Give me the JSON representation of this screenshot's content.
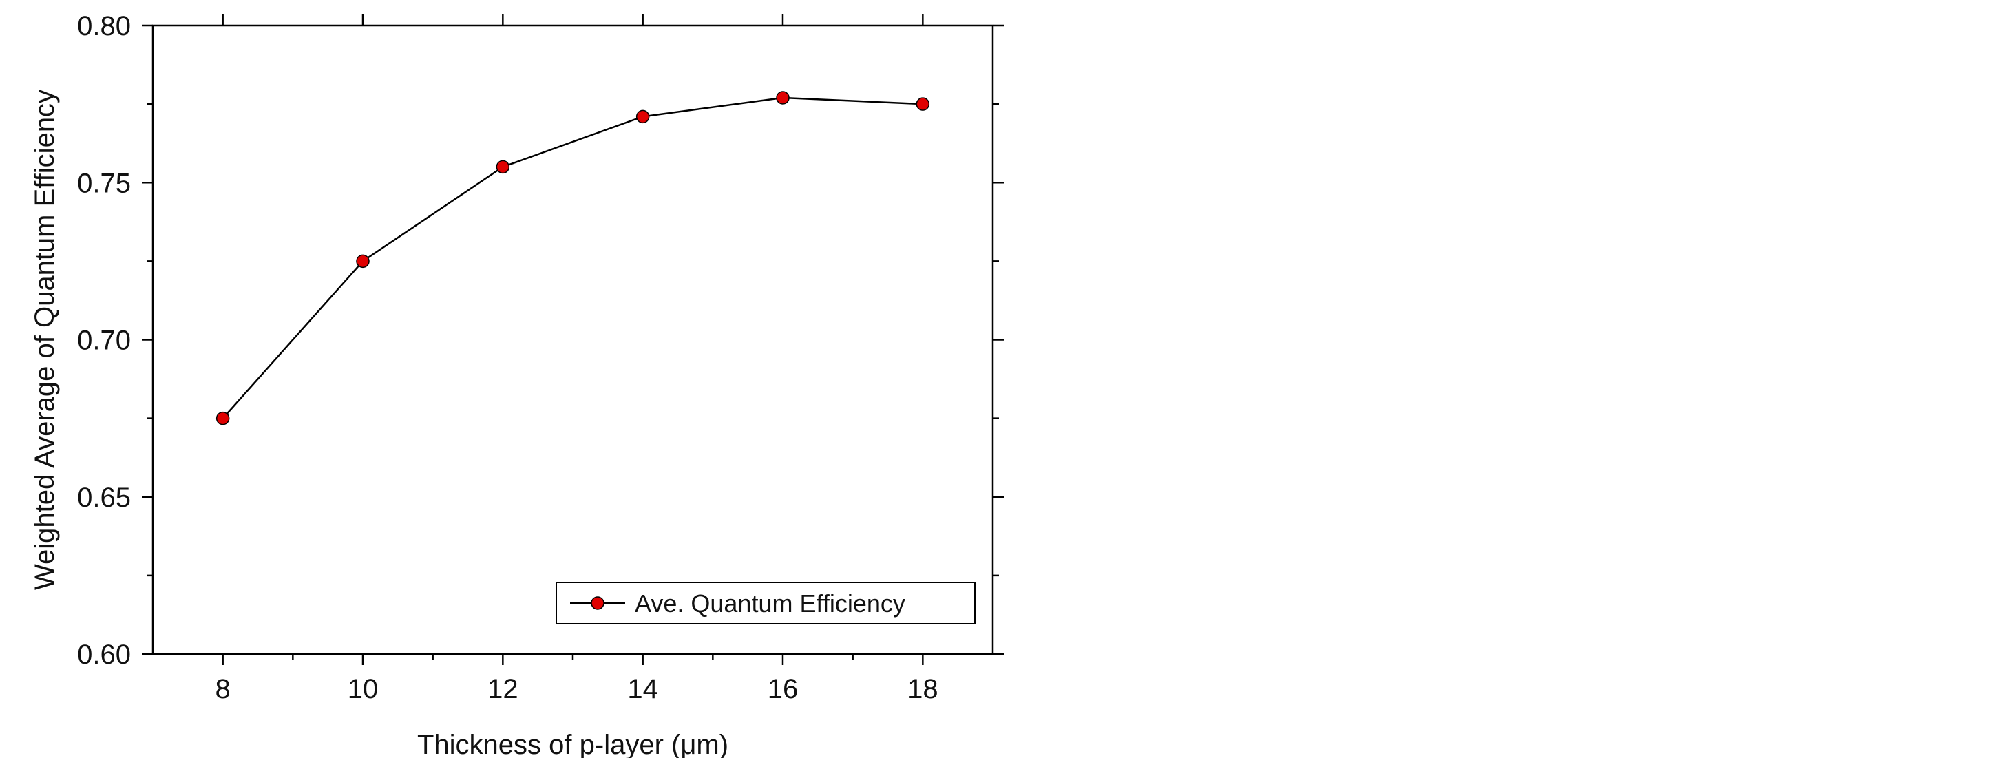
{
  "chart_data": {
    "type": "line",
    "title": "",
    "xlabel": "Thickness of p-layer (μm)",
    "ylabel": "Weighted Average of Quantum Efficiency",
    "x": [
      8,
      10,
      12,
      14,
      16,
      18
    ],
    "series": [
      {
        "name": "Ave. Quantum Efficiency",
        "values": [
          0.675,
          0.725,
          0.755,
          0.771,
          0.777,
          0.775
        ],
        "line_color": "#000000",
        "marker_color": "#e00000",
        "marker": "circle"
      }
    ],
    "xlim": [
      7,
      19
    ],
    "ylim": [
      0.6,
      0.8
    ],
    "x_ticks": [
      8,
      10,
      12,
      14,
      16,
      18
    ],
    "x_tick_labels": [
      "8",
      "10",
      "12",
      "14",
      "16",
      "18"
    ],
    "x_minor_ticks": [
      9,
      11,
      13,
      15,
      17
    ],
    "y_ticks": [
      0.6,
      0.65,
      0.7,
      0.75,
      0.8
    ],
    "y_tick_labels": [
      "0.60",
      "0.65",
      "0.70",
      "0.75",
      "0.80"
    ],
    "y_minor_ticks": [
      0.625,
      0.675,
      0.725,
      0.775
    ],
    "grid": false,
    "legend_position": "bottom-right"
  }
}
